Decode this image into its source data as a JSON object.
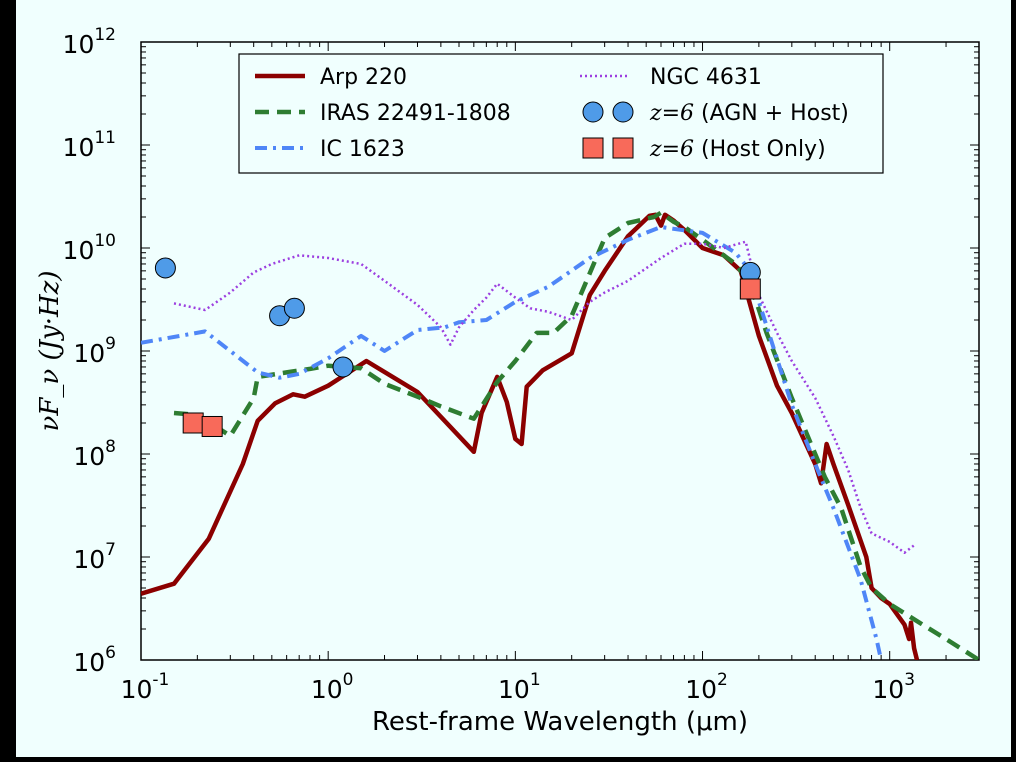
{
  "chart_data": {
    "type": "line",
    "x_scale": "log",
    "y_scale": "log",
    "xlim": [
      0.1,
      3000
    ],
    "ylim": [
      1000000,
      1000000000000
    ],
    "xlabel": "Rest-frame Wavelength (μm)",
    "ylabel": "νF_ν (Jy·Hz)",
    "x_ticks": [
      {
        "value": 0.1,
        "base": "10",
        "exp": "-1"
      },
      {
        "value": 1,
        "base": "10",
        "exp": "0"
      },
      {
        "value": 10,
        "base": "10",
        "exp": "1"
      },
      {
        "value": 100,
        "base": "10",
        "exp": "2"
      },
      {
        "value": 1000,
        "base": "10",
        "exp": "3"
      }
    ],
    "y_ticks": [
      {
        "value": 1000000,
        "base": "10",
        "exp": "6"
      },
      {
        "value": 10000000,
        "base": "10",
        "exp": "7"
      },
      {
        "value": 100000000,
        "base": "10",
        "exp": "8"
      },
      {
        "value": 1000000000,
        "base": "10",
        "exp": "9"
      },
      {
        "value": 10000000000,
        "base": "10",
        "exp": "10"
      },
      {
        "value": 100000000000,
        "base": "10",
        "exp": "11"
      },
      {
        "value": 1000000000000,
        "base": "10",
        "exp": "12"
      }
    ],
    "grid": false,
    "legend_position": "top-center",
    "series": [
      {
        "name": "Arp 220",
        "style": "solid",
        "color": "#8b0000",
        "points": [
          [
            0.1,
            4400000.0
          ],
          [
            0.15,
            5500000.0
          ],
          [
            0.23,
            15000000.0
          ],
          [
            0.35,
            80000000.0
          ],
          [
            0.42,
            210000000.0
          ],
          [
            0.52,
            310000000.0
          ],
          [
            0.65,
            380000000.0
          ],
          [
            0.75,
            360000000.0
          ],
          [
            1.0,
            460000000.0
          ],
          [
            1.6,
            800000000.0
          ],
          [
            3.0,
            400000000.0
          ],
          [
            6.0,
            105000000.0
          ],
          [
            6.6,
            250000000.0
          ],
          [
            8.0,
            560000000.0
          ],
          [
            9.0,
            320000000.0
          ],
          [
            10.0,
            140000000.0
          ],
          [
            10.8,
            125000000.0
          ],
          [
            11.5,
            450000000.0
          ],
          [
            14.0,
            650000000.0
          ],
          [
            20.0,
            950000000.0
          ],
          [
            25.0,
            3500000000.0
          ],
          [
            30.0,
            6000000000.0
          ],
          [
            40.0,
            13000000000.0
          ],
          [
            52.0,
            20500000000.0
          ],
          [
            56.0,
            21000000000.0
          ],
          [
            60.0,
            16500000000.0
          ],
          [
            63.0,
            21000000000.0
          ],
          [
            70.0,
            18500000000.0
          ],
          [
            80.0,
            15000000000.0
          ],
          [
            100.0,
            10000000000.0
          ],
          [
            130.0,
            8500000000.0
          ],
          [
            160.0,
            6000000000.0
          ],
          [
            200.0,
            1400000000.0
          ],
          [
            250.0,
            460000000.0
          ],
          [
            300.0,
            250000000.0
          ],
          [
            400.0,
            80000000.0
          ],
          [
            430.0,
            52000000.0
          ],
          [
            460.0,
            125000000.0
          ],
          [
            500.0,
            80000000.0
          ],
          [
            600.0,
            32000000.0
          ],
          [
            750.0,
            10000000.0
          ],
          [
            800.0,
            5000000.0
          ],
          [
            900.0,
            4000000.0
          ],
          [
            1000.0,
            3500000.0
          ],
          [
            1200.0,
            2200000.0
          ],
          [
            1270.0,
            1600000.0
          ],
          [
            1300.0,
            2300000.0
          ],
          [
            1350.0,
            1300000.0
          ],
          [
            1400.0,
            1000000.0
          ]
        ]
      },
      {
        "name": "IRAS 22491-1808",
        "style": "dashed",
        "color": "#2e7d32",
        "points": [
          [
            0.15,
            250000000.0
          ],
          [
            0.2,
            240000000.0
          ],
          [
            0.3,
            150000000.0
          ],
          [
            0.4,
            350000000.0
          ],
          [
            0.42,
            560000000.0
          ],
          [
            0.6,
            620000000.0
          ],
          [
            0.8,
            670000000.0
          ],
          [
            1.0,
            720000000.0
          ],
          [
            1.5,
            680000000.0
          ],
          [
            2.0,
            480000000.0
          ],
          [
            3.0,
            360000000.0
          ],
          [
            4.0,
            290000000.0
          ],
          [
            6.0,
            220000000.0
          ],
          [
            8.0,
            500000000.0
          ],
          [
            10.0,
            800000000.0
          ],
          [
            13.0,
            1500000000.0
          ],
          [
            16.0,
            1500000000.0
          ],
          [
            20.0,
            2200000000.0
          ],
          [
            23.0,
            4000000000.0
          ],
          [
            30.0,
            12500000000.0
          ],
          [
            40.0,
            17500000000.0
          ],
          [
            55.0,
            20000000000.0
          ],
          [
            60.0,
            22000000000.0
          ],
          [
            70.0,
            18000000000.0
          ],
          [
            80.0,
            16000000000.0
          ],
          [
            100.0,
            12000000000.0
          ],
          [
            150.0,
            7000000000.0
          ],
          [
            180.0,
            4500000000.0
          ],
          [
            220.0,
            1500000000.0
          ],
          [
            300.0,
            350000000.0
          ],
          [
            400.0,
            100000000.0
          ],
          [
            450.0,
            60000000.0
          ],
          [
            550.0,
            30000000.0
          ],
          [
            700.0,
            8000000.0
          ],
          [
            800.0,
            5000000.0
          ],
          [
            1000.0,
            3500000.0
          ],
          [
            1500.0,
            2200000.0
          ],
          [
            2000.0,
            1600000.0
          ],
          [
            3000.0,
            1000000.0
          ]
        ]
      },
      {
        "name": "IC 1623",
        "style": "dashdot",
        "color": "#4f86f7",
        "points": [
          [
            0.1,
            1200000000.0
          ],
          [
            0.22,
            1550000000.0
          ],
          [
            0.3,
            1000000000.0
          ],
          [
            0.42,
            620000000.0
          ],
          [
            0.55,
            550000000.0
          ],
          [
            0.7,
            600000000.0
          ],
          [
            1.0,
            850000000.0
          ],
          [
            1.5,
            1400000000.0
          ],
          [
            2.0,
            1000000000.0
          ],
          [
            3.0,
            1600000000.0
          ],
          [
            4.2,
            1700000000.0
          ],
          [
            5.0,
            1900000000.0
          ],
          [
            7.0,
            2000000000.0
          ],
          [
            10.0,
            3000000000.0
          ],
          [
            15.0,
            4200000000.0
          ],
          [
            25.0,
            8000000000.0
          ],
          [
            40.0,
            12000000000.0
          ],
          [
            60.0,
            16000000000.0
          ],
          [
            100.0,
            14000000000.0
          ],
          [
            150.0,
            9000000000.0
          ],
          [
            180.0,
            6000000000.0
          ],
          [
            200.0,
            3000000000.0
          ],
          [
            300.0,
            300000000.0
          ],
          [
            400.0,
            80000000.0
          ],
          [
            500.0,
            30000000.0
          ],
          [
            700.0,
            6000000.0
          ],
          [
            850.0,
            1600000.0
          ],
          [
            900.0,
            1000000.0
          ]
        ]
      },
      {
        "name": "NGC 4631",
        "style": "dotted",
        "color": "#9c3fe0",
        "points": [
          [
            0.15,
            2900000000.0
          ],
          [
            0.22,
            2500000000.0
          ],
          [
            0.3,
            3700000000.0
          ],
          [
            0.4,
            5800000000.0
          ],
          [
            0.5,
            7000000000.0
          ],
          [
            0.7,
            8500000000.0
          ],
          [
            1.0,
            8000000000.0
          ],
          [
            1.5,
            7000000000.0
          ],
          [
            2.0,
            4800000000.0
          ],
          [
            3.0,
            2800000000.0
          ],
          [
            4.0,
            1700000000.0
          ],
          [
            4.5,
            1150000000.0
          ],
          [
            5.0,
            1700000000.0
          ],
          [
            6.0,
            2500000000.0
          ],
          [
            7.0,
            3300000000.0
          ],
          [
            8.0,
            4500000000.0
          ],
          [
            10.0,
            3300000000.0
          ],
          [
            12.0,
            2600000000.0
          ],
          [
            15.0,
            2400000000.0
          ],
          [
            20.0,
            2000000000.0
          ],
          [
            25.0,
            3000000000.0
          ],
          [
            30.0,
            3700000000.0
          ],
          [
            40.0,
            4800000000.0
          ],
          [
            60.0,
            8000000000.0
          ],
          [
            80.0,
            11000000000.0
          ],
          [
            100.0,
            11000000000.0
          ],
          [
            130.0,
            10000000000.0
          ],
          [
            170.0,
            11500000000.0
          ],
          [
            200.0,
            3500000000.0
          ],
          [
            250.0,
            1500000000.0
          ],
          [
            300.0,
            800000000.0
          ],
          [
            400.0,
            350000000.0
          ],
          [
            500.0,
            150000000.0
          ],
          [
            600.0,
            70000000.0
          ],
          [
            700.0,
            30000000.0
          ],
          [
            800.0,
            17000000.0
          ],
          [
            1000.0,
            14000000.0
          ],
          [
            1200.0,
            11000000.0
          ],
          [
            1350.0,
            13000000.0
          ]
        ]
      },
      {
        "name": "(AGN + Host)",
        "math": "z=6",
        "style": "circle-markers",
        "color": "#4f9be8",
        "points": [
          [
            0.135,
            6400000000.0
          ],
          [
            0.55,
            2200000000.0
          ],
          [
            0.66,
            2600000000.0
          ],
          [
            1.2,
            700000000.0
          ],
          [
            180.0,
            5800000000.0
          ]
        ]
      },
      {
        "name": "(Host Only)",
        "math": "z=6",
        "style": "square-markers",
        "color": "#f86a5a",
        "points": [
          [
            0.19,
            200000000.0
          ],
          [
            0.24,
            185000000.0
          ],
          [
            180.0,
            4000000000.0
          ]
        ]
      }
    ]
  }
}
